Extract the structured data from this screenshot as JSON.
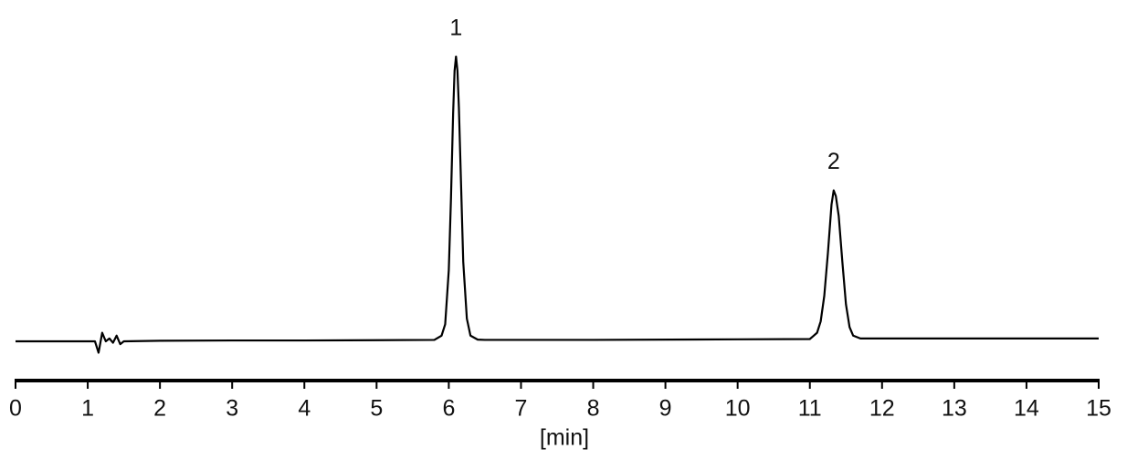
{
  "chart_data": {
    "type": "line",
    "x_label": "[min]",
    "x": [
      0,
      1.1,
      1.15,
      1.2,
      1.25,
      1.3,
      1.35,
      1.4,
      1.45,
      1.5,
      2,
      3,
      4,
      5,
      5.8,
      5.9,
      5.95,
      6.0,
      6.03,
      6.06,
      6.08,
      6.1,
      6.12,
      6.14,
      6.17,
      6.2,
      6.25,
      6.3,
      6.4,
      6.5,
      8,
      10,
      11.0,
      11.1,
      11.15,
      11.2,
      11.25,
      11.3,
      11.33,
      11.36,
      11.4,
      11.45,
      11.5,
      11.55,
      11.6,
      11.7,
      12,
      15
    ],
    "series": [
      {
        "color": "#000000",
        "values": [
          0,
          0,
          -4,
          3,
          0,
          1,
          -0.5,
          2,
          -1,
          0,
          0.2,
          0.3,
          0.3,
          0.4,
          0.5,
          2,
          6,
          25,
          50,
          80,
          95,
          100,
          95,
          82,
          55,
          28,
          8,
          2,
          0.6,
          0.5,
          0.5,
          0.7,
          0.8,
          3,
          7,
          16,
          31,
          48,
          53,
          51,
          44,
          28,
          13,
          5,
          2,
          1,
          1,
          1
        ]
      }
    ],
    "annotations": [
      {
        "text": "1",
        "x": 6.1
      },
      {
        "text": "2",
        "x": 11.33
      }
    ],
    "xlim": [
      0,
      15
    ],
    "xticks": [
      0,
      1,
      2,
      3,
      4,
      5,
      6,
      7,
      8,
      9,
      10,
      11,
      12,
      13,
      14,
      15
    ],
    "ylim": [
      0,
      100
    ]
  }
}
